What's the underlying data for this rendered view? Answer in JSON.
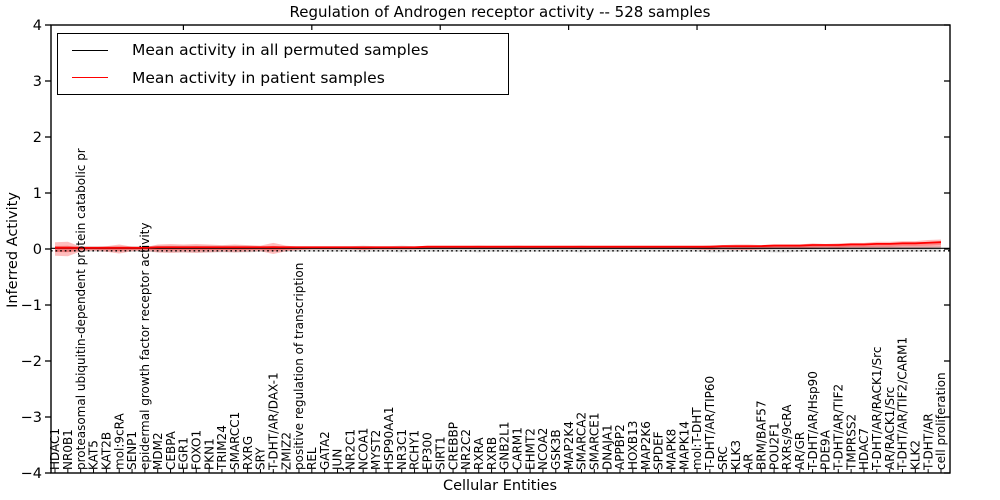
{
  "title": "Regulation of Androgen receptor activity -- 528 samples",
  "axes": {
    "ylabel": "Inferred Activity",
    "xlabel": "Cellular Entities",
    "yticks": [
      "4",
      "3",
      "2",
      "1",
      "0",
      "−1",
      "−2",
      "−3",
      "−4"
    ],
    "ytick_values": [
      4,
      3,
      2,
      1,
      0,
      -1,
      -2,
      -3,
      -4
    ],
    "ylim": [
      -4,
      4
    ]
  },
  "legend": {
    "items": [
      {
        "label": "Mean activity in all permuted samples",
        "color": "#000000"
      },
      {
        "label": "Mean activity in patient samples",
        "color": "#ff0000"
      }
    ]
  },
  "colors": {
    "patient_line": "#ff0000",
    "patient_band": "rgba(255,40,40,0.30)",
    "patient_band_core": "rgba(255,0,0,0.28)",
    "permuted_line": "#000000",
    "permuted_band": "rgba(190,190,190,0.55)",
    "axis": "#000000"
  },
  "chart_data": {
    "type": "line",
    "title": "Regulation of Androgen receptor activity -- 528 samples",
    "xlabel": "Cellular Entities",
    "ylabel": "Inferred Activity",
    "ylim": [
      -4,
      4
    ],
    "grid": false,
    "legend_position": "upper left",
    "categories": [
      "HDAC1",
      "NR0B1",
      "proteasomal ubiquitin-dependent protein catabolic pr",
      "KAT5",
      "KAT2B",
      "mol:9cRA",
      "SENP1",
      "epidermal growth factor receptor activity",
      "MDM2",
      "CEBPA",
      "EGR1",
      "FOXO1",
      "PKN1",
      "TRIM24",
      "SMARCC1",
      "RXRG",
      "SRY",
      "T-DHT/AR/DAX-1",
      "ZMIZ2",
      "positive regulation of transcription",
      "REL",
      "GATA2",
      "JUN",
      "NR2C1",
      "NCOA1",
      "MYST2",
      "HSP90AA1",
      "NR3C1",
      "RCHY1",
      "EP300",
      "SIRT1",
      "CREBBP",
      "NR2C2",
      "RXRA",
      "RXRB",
      "GNB2L1",
      "CARM1",
      "EHMT2",
      "NCOA2",
      "GSK3B",
      "MAP2K4",
      "SMARCA2",
      "SMARCE1",
      "DNAJA1",
      "APPBP2",
      "HOXB13",
      "MAP2K6",
      "SPDEF",
      "MAPK8",
      "MAPK14",
      "mol:T-DHT",
      "T-DHT/AR/TIP60",
      "SRC",
      "KLK3",
      "AR",
      "BRM/BAF57",
      "POU2F1",
      "RXRs/9cRA",
      "AR/GR",
      "T-DHT/AR/Hsp90",
      "PDE9A",
      "T-DHT/AR/TIF2",
      "TMPRSS2",
      "HDAC7",
      "T-DHT/AR/RACK1/Src",
      "AR/RACK1/Src",
      "T-DHT/AR/TIF2/CARM1",
      "KLK2",
      "T-DHT/AR",
      "cell proliferation"
    ],
    "series": [
      {
        "name": "Mean activity in all permuted samples",
        "color": "#000000",
        "values": [
          0,
          0,
          0,
          0,
          0,
          0,
          0,
          0,
          0,
          0,
          0,
          0,
          0,
          0,
          0,
          0,
          0,
          0,
          0,
          0,
          0,
          0,
          0,
          0,
          0,
          0,
          0,
          0,
          0,
          0,
          0,
          0,
          0,
          0,
          0,
          0,
          0,
          0,
          0,
          0,
          0,
          0,
          0,
          0,
          0,
          0,
          0,
          0,
          0,
          0,
          0,
          0,
          0,
          0,
          0,
          0,
          0,
          0,
          0,
          0,
          0,
          0,
          0,
          0,
          0,
          0,
          0,
          0,
          0,
          0
        ]
      },
      {
        "name": "Mean activity in patient samples",
        "color": "#ff0000",
        "values": [
          0,
          0,
          0,
          0,
          0,
          0,
          0,
          0,
          0.01,
          0.01,
          0.01,
          0.01,
          0.01,
          0.01,
          0.01,
          0.01,
          0.01,
          0.01,
          0.01,
          0.01,
          0.01,
          0.01,
          0.01,
          0.01,
          0.01,
          0.01,
          0.01,
          0.01,
          0.01,
          0.02,
          0.02,
          0.02,
          0.02,
          0.02,
          0.02,
          0.02,
          0.02,
          0.02,
          0.02,
          0.02,
          0.02,
          0.02,
          0.02,
          0.02,
          0.02,
          0.02,
          0.02,
          0.02,
          0.02,
          0.02,
          0.02,
          0.02,
          0.03,
          0.03,
          0.03,
          0.03,
          0.04,
          0.04,
          0.04,
          0.05,
          0.05,
          0.05,
          0.06,
          0.06,
          0.07,
          0.07,
          0.08,
          0.08,
          0.09,
          0.1
        ]
      }
    ],
    "bands": [
      {
        "name": "patient std band",
        "around_series": "Mean activity in patient samples",
        "color": "rgba(255,40,40,0.30)",
        "halfwidths": [
          0.12,
          0.13,
          0.04,
          0.03,
          0.05,
          0.08,
          0.04,
          0.03,
          0.07,
          0.08,
          0.07,
          0.08,
          0.07,
          0.06,
          0.07,
          0.06,
          0.05,
          0.1,
          0.05,
          0.03,
          0.02,
          0.02,
          0.02,
          0.02,
          0.03,
          0.02,
          0.02,
          0.02,
          0.02,
          0.02,
          0.02,
          0.02,
          0.02,
          0.02,
          0.02,
          0.02,
          0.02,
          0.02,
          0.02,
          0.02,
          0.02,
          0.02,
          0.02,
          0.02,
          0.02,
          0.02,
          0.02,
          0.02,
          0.02,
          0.02,
          0.03,
          0.04,
          0.04,
          0.05,
          0.05,
          0.04,
          0.04,
          0.04,
          0.04,
          0.05,
          0.04,
          0.05,
          0.05,
          0.05,
          0.06,
          0.06,
          0.06,
          0.06,
          0.07,
          0.07
        ]
      },
      {
        "name": "permuted std band",
        "around_series": "Mean activity in all permuted samples",
        "color": "rgba(190,190,190,0.55)",
        "halfwidths": [
          0.05,
          0.05,
          0.05,
          0.05,
          0.05,
          0.05,
          0.05,
          0.05,
          0.06,
          0.06,
          0.06,
          0.06,
          0.06,
          0.06,
          0.06,
          0.06,
          0.05,
          0.05,
          0.05,
          0.05,
          0.05,
          0.05,
          0.05,
          0.05,
          0.06,
          0.05,
          0.05,
          0.06,
          0.05,
          0.05,
          0.05,
          0.05,
          0.05,
          0.06,
          0.05,
          0.05,
          0.06,
          0.05,
          0.05,
          0.05,
          0.05,
          0.06,
          0.05,
          0.05,
          0.05,
          0.05,
          0.05,
          0.05,
          0.05,
          0.05,
          0.05,
          0.06,
          0.06,
          0.05,
          0.05,
          0.05,
          0.06,
          0.06,
          0.05,
          0.05,
          0.05,
          0.05,
          0.05,
          0.05,
          0.05,
          0.05,
          0.05,
          0.05,
          0.05,
          0.05
        ]
      }
    ],
    "zero_line": {
      "style": "dotted",
      "color": "#000000",
      "y": 0
    }
  }
}
